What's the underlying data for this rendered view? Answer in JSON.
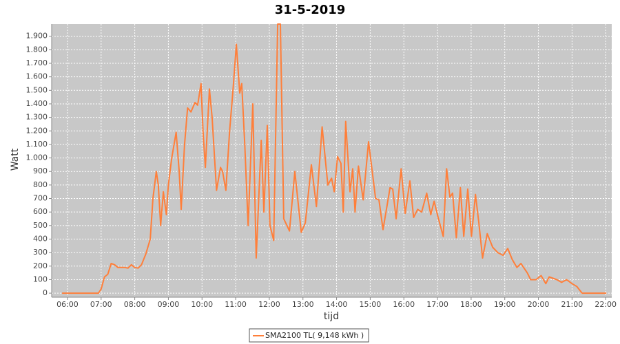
{
  "chart_data": {
    "type": "line",
    "title": "31-5-2019",
    "x_label": "tijd",
    "y_label": "Watt",
    "x": [
      5.84,
      6.92,
      7.0,
      7.1,
      7.2,
      7.3,
      7.4,
      7.5,
      7.7,
      7.8,
      7.9,
      8.0,
      8.1,
      8.2,
      8.33,
      8.46,
      8.54,
      8.64,
      8.7,
      8.77,
      8.85,
      8.94,
      9.0,
      9.1,
      9.23,
      9.32,
      9.38,
      9.48,
      9.57,
      9.67,
      9.79,
      9.87,
      9.97,
      10.03,
      10.1,
      10.22,
      10.3,
      10.43,
      10.55,
      10.61,
      10.71,
      10.82,
      10.92,
      11.02,
      11.12,
      11.18,
      11.27,
      11.37,
      11.51,
      11.61,
      11.76,
      11.84,
      11.94,
      12.02,
      12.13,
      12.25,
      12.33,
      12.43,
      12.6,
      12.76,
      12.95,
      13.07,
      13.25,
      13.4,
      13.57,
      13.74,
      13.85,
      13.93,
      14.03,
      14.13,
      14.2,
      14.27,
      14.4,
      14.48,
      14.55,
      14.65,
      14.79,
      14.95,
      15.16,
      15.26,
      15.38,
      15.59,
      15.67,
      15.77,
      15.92,
      16.04,
      16.18,
      16.29,
      16.41,
      16.53,
      16.68,
      16.8,
      16.9,
      17.02,
      17.17,
      17.27,
      17.37,
      17.45,
      17.56,
      17.68,
      17.78,
      17.9,
      18.01,
      18.13,
      18.23,
      18.34,
      18.48,
      18.64,
      18.79,
      18.95,
      19.09,
      19.22,
      19.36,
      19.48,
      19.67,
      19.77,
      19.93,
      20.08,
      20.22,
      20.32,
      20.55,
      20.69,
      20.84,
      21.0,
      21.14,
      21.3,
      22.02
    ],
    "series": [
      {
        "name": "SMA2100 TL( 9,148 kWh )",
        "color": "#ff7f3a",
        "values": [
          0,
          0,
          30,
          120,
          140,
          220,
          210,
          190,
          190,
          185,
          210,
          190,
          185,
          210,
          290,
          400,
          700,
          900,
          800,
          500,
          750,
          580,
          800,
          1000,
          1190,
          900,
          620,
          1100,
          1370,
          1340,
          1410,
          1390,
          1550,
          1200,
          930,
          1510,
          1300,
          760,
          930,
          900,
          760,
          1200,
          1500,
          1840,
          1480,
          1550,
          1100,
          500,
          1400,
          260,
          1130,
          600,
          1240,
          500,
          390,
          1990,
          1990,
          550,
          460,
          900,
          450,
          520,
          950,
          640,
          1230,
          800,
          850,
          750,
          1010,
          960,
          600,
          1270,
          750,
          920,
          600,
          940,
          690,
          1120,
          700,
          690,
          470,
          780,
          770,
          550,
          920,
          590,
          830,
          560,
          620,
          600,
          740,
          580,
          680,
          560,
          420,
          920,
          710,
          740,
          410,
          780,
          420,
          770,
          420,
          730,
          520,
          260,
          440,
          340,
          300,
          280,
          330,
          250,
          190,
          220,
          150,
          100,
          100,
          130,
          70,
          120,
          100,
          80,
          100,
          70,
          50,
          0,
          0
        ]
      }
    ],
    "xlim": [
      5.53,
      22.18
    ],
    "xticks": [
      {
        "value": 6,
        "label": "06:00"
      },
      {
        "value": 7,
        "label": "07:00"
      },
      {
        "value": 8,
        "label": "08:00"
      },
      {
        "value": 9,
        "label": "09:00"
      },
      {
        "value": 10,
        "label": "10:00"
      },
      {
        "value": 11,
        "label": "11:00"
      },
      {
        "value": 12,
        "label": "12:00"
      },
      {
        "value": 13,
        "label": "13:00"
      },
      {
        "value": 14,
        "label": "14:00"
      },
      {
        "value": 15,
        "label": "15:00"
      },
      {
        "value": 16,
        "label": "16:00"
      },
      {
        "value": 17,
        "label": "17:00"
      },
      {
        "value": 18,
        "label": "18:00"
      },
      {
        "value": 19,
        "label": "19:00"
      },
      {
        "value": 20,
        "label": "20:00"
      },
      {
        "value": 21,
        "label": "21:00"
      },
      {
        "value": 22,
        "label": "22:00"
      }
    ],
    "ylim": [
      -30,
      1990
    ],
    "yticks": [
      0,
      100,
      200,
      300,
      400,
      500,
      600,
      700,
      800,
      900,
      {
        "value": 1000,
        "label": "1.000"
      },
      {
        "value": 1100,
        "label": "1.100"
      },
      {
        "value": 1200,
        "label": "1.200"
      },
      {
        "value": 1300,
        "label": "1.300"
      },
      {
        "value": 1400,
        "label": "1.400"
      },
      {
        "value": 1500,
        "label": "1.500"
      },
      {
        "value": 1600,
        "label": "1.600"
      },
      {
        "value": 1700,
        "label": "1.700"
      },
      {
        "value": 1800,
        "label": "1.800"
      },
      {
        "value": 1900,
        "label": "1.900"
      }
    ],
    "grid": true
  }
}
